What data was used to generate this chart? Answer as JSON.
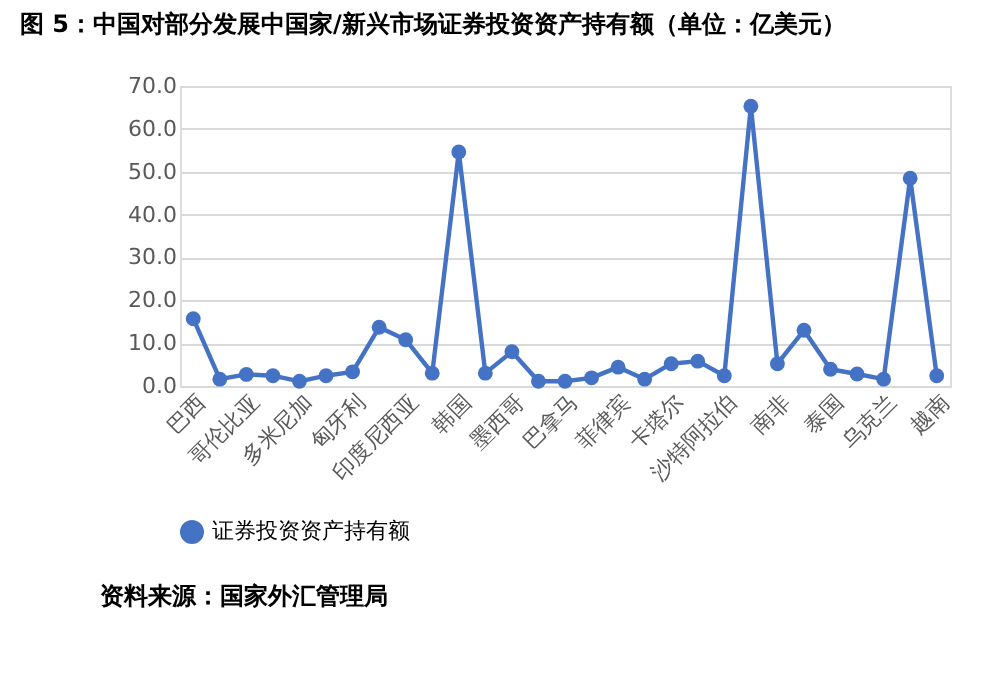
{
  "chart_data": {
    "type": "line",
    "title": "图 5：中国对部分发展中国家/新兴市场证券投资资产持有额（单位：亿美元）",
    "categories": [
      "巴西",
      null,
      "哥伦比亚",
      null,
      "多米尼加",
      null,
      "匈牙利",
      null,
      "印度尼西亚",
      null,
      "韩国",
      null,
      "墨西哥",
      null,
      "巴拿马",
      null,
      "菲律宾",
      null,
      "卡塔尔",
      null,
      "沙特阿拉伯",
      null,
      "南非",
      null,
      "泰国",
      null,
      "乌克兰",
      null,
      "越南"
    ],
    "series": [
      {
        "name": "证券投资资产持有额",
        "color": "#4472c4",
        "values": [
          15.7,
          1.6,
          2.7,
          2.4,
          1.1,
          2.4,
          3.3,
          13.7,
          10.8,
          3.0,
          54.6,
          3.0,
          8.0,
          1.1,
          1.1,
          1.9,
          4.4,
          1.6,
          5.2,
          5.8,
          2.4,
          65.3,
          5.2,
          13.0,
          3.9,
          2.8,
          1.6,
          48.5,
          2.4
        ]
      }
    ],
    "ylim": [
      0,
      70
    ],
    "yticks": [
      {
        "value": 0,
        "label": "0.0"
      },
      {
        "value": 10,
        "label": "10.0"
      },
      {
        "value": 20,
        "label": "20.0"
      },
      {
        "value": 30,
        "label": "30.0"
      },
      {
        "value": 40,
        "label": "40.0"
      },
      {
        "value": 50,
        "label": "50.0"
      },
      {
        "value": 60,
        "label": "60.0"
      },
      {
        "value": 70,
        "label": "70.0"
      }
    ],
    "grid": "y",
    "legend": "bottom",
    "marker": "circle",
    "line_style": "solid",
    "annotations": [
      "资料来源：国家外汇管理局"
    ]
  }
}
